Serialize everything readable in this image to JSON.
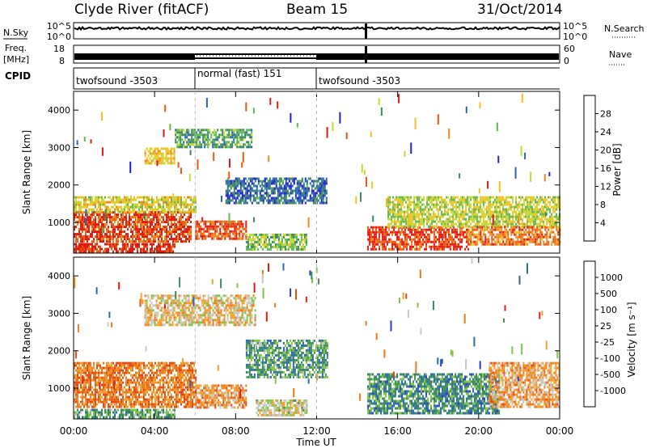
{
  "header": {
    "station": "Clyde River (fitACF)",
    "beam": "Beam 15",
    "date": "31/Oct/2014"
  },
  "strips": {
    "nsky_label": "N.Sky",
    "nsearch_label": "N.Search",
    "noise_ticks_left": [
      "10^5",
      "10^0"
    ],
    "noise_ticks_right": [
      "10^5",
      "10^0"
    ],
    "freq_label_line1": "Freq.",
    "freq_label_line2": "[MHz]",
    "freq_ticks": [
      "18",
      "8"
    ],
    "nave_label": "Nave",
    "nave_ticks": [
      "60",
      "0"
    ],
    "cpid_label": "CPID",
    "cpid_segments": [
      {
        "label": "twofsound -3503",
        "start_h": 0,
        "end_h": 6
      },
      {
        "label": "normal (fast) 151",
        "start_h": 6,
        "end_h": 12
      },
      {
        "label": "twofsound -3503",
        "start_h": 12,
        "end_h": 24
      }
    ]
  },
  "colors": {
    "power_scale": [
      "#2020d0",
      "#2c63b8",
      "#3a8a5a",
      "#61b84d",
      "#c8d830",
      "#f3c122",
      "#f08a18",
      "#ec5a12",
      "#e01a10"
    ],
    "velocity_scale": [
      "#2a3fb8",
      "#2c6aa5",
      "#3b8e55",
      "#7ec44a",
      "#c8c8c0",
      "#f0a02a",
      "#ef7a1c",
      "#e84a14",
      "#de1c10"
    ]
  },
  "chart_data": [
    {
      "type": "heatmap",
      "name": "power",
      "xlabel": "",
      "ylabel": "Slant Range [km]",
      "x_range": [
        0,
        24
      ],
      "ylim": [
        180,
        4500
      ],
      "y_ticks": [
        1000,
        2000,
        3000,
        4000
      ],
      "colorbar_label": "Power [dB]",
      "colorbar_ticks": [
        "4",
        "8",
        "12",
        "16",
        "20",
        "24",
        "28"
      ],
      "regions": [
        {
          "t0": 0.0,
          "t1": 5.8,
          "r0": 500,
          "r1": 1300,
          "level": 7.5
        },
        {
          "t0": 0.0,
          "t1": 6.0,
          "r0": 1300,
          "r1": 1700,
          "level": 4.5
        },
        {
          "t0": 0.0,
          "t1": 5.0,
          "r0": 250,
          "r1": 450,
          "level": 8.0
        },
        {
          "t0": 6.0,
          "t1": 8.5,
          "r0": 550,
          "r1": 1050,
          "level": 7.2
        },
        {
          "t0": 8.5,
          "t1": 11.5,
          "r0": 300,
          "r1": 700,
          "level": 3.2
        },
        {
          "t0": 7.5,
          "t1": 12.5,
          "r0": 1500,
          "r1": 2200,
          "level": 1.2
        },
        {
          "t0": 3.5,
          "t1": 5.0,
          "r0": 2600,
          "r1": 3000,
          "level": 5.0
        },
        {
          "t0": 5.0,
          "t1": 8.8,
          "r0": 3000,
          "r1": 3500,
          "level": 2.5
        },
        {
          "t0": 14.5,
          "t1": 19.5,
          "r0": 300,
          "r1": 900,
          "level": 7.6
        },
        {
          "t0": 15.5,
          "t1": 24.0,
          "r0": 900,
          "r1": 1700,
          "level": 4.0
        },
        {
          "t0": 19.5,
          "t1": 24.0,
          "r0": 400,
          "r1": 900,
          "level": 6.5
        }
      ],
      "time_ticks": [
        "00:00",
        "04:00",
        "08:00",
        "12:00",
        "16:00",
        "20:00",
        "00:00"
      ]
    },
    {
      "type": "heatmap",
      "name": "velocity",
      "xlabel": "Time UT",
      "ylabel": "Slant Range [km]",
      "x_range": [
        0,
        24
      ],
      "ylim": [
        180,
        4500
      ],
      "y_ticks": [
        1000,
        2000,
        3000,
        4000
      ],
      "colorbar_label": "Velocity [m s⁻¹]",
      "colorbar_ticks": [
        "1000",
        "500",
        "100",
        "25",
        "-25",
        "-100",
        "-500",
        "-1000"
      ],
      "regions": [
        {
          "t0": 0.0,
          "t1": 6.0,
          "r0": 500,
          "r1": 1700,
          "level": 2.0
        },
        {
          "t0": 0.0,
          "t1": 5.0,
          "r0": 250,
          "r1": 450,
          "level": 5.5
        },
        {
          "t0": 6.0,
          "t1": 8.5,
          "r0": 500,
          "r1": 1100,
          "level": 2.5
        },
        {
          "t0": 8.5,
          "t1": 12.5,
          "r0": 1300,
          "r1": 2300,
          "level": 5.8
        },
        {
          "t0": 9.0,
          "t1": 11.5,
          "r0": 300,
          "r1": 700,
          "level": 4.2
        },
        {
          "t0": 3.5,
          "t1": 9.0,
          "r0": 2700,
          "r1": 3500,
          "level": 3.5
        },
        {
          "t0": 14.5,
          "t1": 21.0,
          "r0": 300,
          "r1": 1400,
          "level": 6.2
        },
        {
          "t0": 20.5,
          "t1": 24.0,
          "r0": 500,
          "r1": 1700,
          "level": 2.8
        }
      ],
      "time_ticks": [
        "00:00",
        "04:00",
        "08:00",
        "12:00",
        "16:00",
        "20:00",
        "00:00"
      ]
    }
  ]
}
